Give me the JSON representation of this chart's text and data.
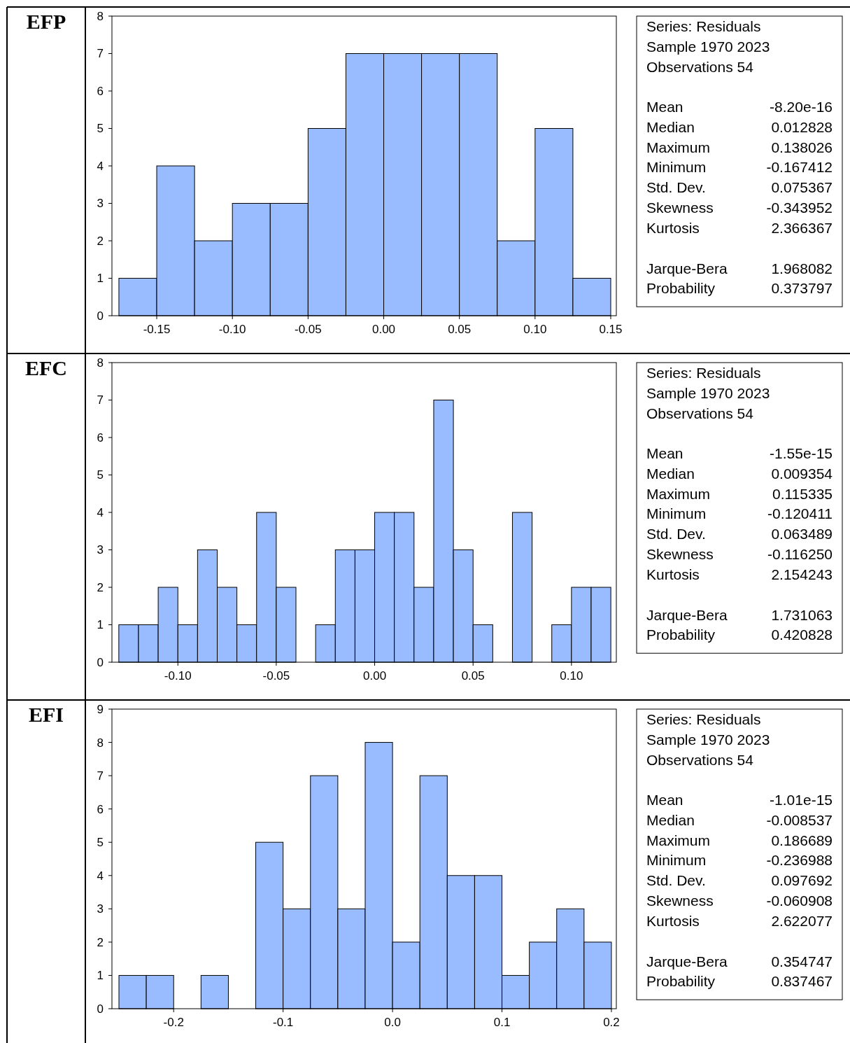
{
  "chart_data": [
    {
      "type": "histogram",
      "title": "EFP",
      "color": "#99bbff",
      "bins": [
        -0.175,
        -0.15,
        -0.125,
        -0.1,
        -0.075,
        -0.05,
        -0.025,
        0,
        0.025,
        0.05,
        0.075,
        0.1,
        0.125,
        0.15
      ],
      "values": [
        1,
        4,
        2,
        3,
        3,
        5,
        7,
        7,
        7,
        7,
        2,
        5,
        1
      ],
      "xlim": [
        -0.1796,
        0.1537
      ],
      "xticks": [
        {
          "value": -0.15,
          "label": "-0.15"
        },
        {
          "value": -0.1,
          "label": "-0.10"
        },
        {
          "value": -0.05,
          "label": "-0.05"
        },
        {
          "value": 0,
          "label": "0.00"
        },
        {
          "value": 0.05,
          "label": "0.05"
        },
        {
          "value": 0.1,
          "label": "0.10"
        },
        {
          "value": 0.15,
          "label": "0.15"
        }
      ],
      "ylim": [
        0,
        8
      ],
      "yticks": [
        0,
        1,
        2,
        3,
        4,
        5,
        6,
        7,
        8
      ],
      "annotations": [
        "Series: Residuals",
        "Sample 1970 2023",
        "Observations 54",
        "Mean",
        "-8.20e-16",
        "Median",
        "0.012828",
        "Maximum",
        "0.138026",
        "Minimum",
        "-0.167412",
        "Std. Dev.",
        "0.075367",
        "Skewness",
        "-0.343952",
        "Kurtosis",
        "2.366367",
        "Jarque-Bera",
        "1.968082",
        "Probability",
        "0.373797"
      ]
    },
    {
      "type": "histogram",
      "title": "EFC",
      "color": "#99bbff",
      "bins": [
        -0.13,
        -0.12,
        -0.11,
        -0.1,
        -0.09,
        -0.08,
        -0.07,
        -0.06,
        -0.05,
        -0.04,
        -0.03,
        -0.02,
        -0.01,
        0,
        0.01,
        0.02,
        0.03,
        0.04,
        0.05,
        0.06,
        0.07,
        0.08,
        0.09,
        0.1,
        0.11,
        0.12
      ],
      "values": [
        1,
        1,
        2,
        1,
        3,
        2,
        1,
        4,
        2,
        0,
        1,
        3,
        3,
        4,
        4,
        2,
        7,
        3,
        1,
        0,
        4,
        0,
        1,
        2,
        2
      ],
      "xlim": [
        -0.1335,
        0.1228
      ],
      "xticks": [
        {
          "value": -0.1,
          "label": "-0.10"
        },
        {
          "value": -0.05,
          "label": "-0.05"
        },
        {
          "value": 0,
          "label": "0.00"
        },
        {
          "value": 0.05,
          "label": "0.05"
        },
        {
          "value": 0.1,
          "label": "0.10"
        }
      ],
      "ylim": [
        0,
        8
      ],
      "yticks": [
        0,
        1,
        2,
        3,
        4,
        5,
        6,
        7,
        8
      ],
      "annotations": [
        "Series: Residuals",
        "Sample 1970 2023",
        "Observations 54",
        "Mean",
        "-1.55e-15",
        "Median",
        "0.009354",
        "Maximum",
        "0.115335",
        "Minimum",
        "-0.120411",
        "Std. Dev.",
        "0.063489",
        "Skewness",
        "-0.116250",
        "Kurtosis",
        "2.154243",
        "Jarque-Bera",
        "1.731063",
        "Probability",
        "0.420828"
      ]
    },
    {
      "type": "histogram",
      "title": "EFI",
      "color": "#99bbff",
      "bins": [
        -0.25,
        -0.225,
        -0.2,
        -0.175,
        -0.15,
        -0.125,
        -0.1,
        -0.075,
        -0.05,
        -0.025,
        0,
        0.025,
        0.05,
        0.075,
        0.1,
        0.125,
        0.15,
        0.175,
        0.2
      ],
      "values": [
        1,
        1,
        0,
        1,
        0,
        5,
        3,
        7,
        3,
        8,
        2,
        7,
        4,
        4,
        1,
        2,
        3,
        2
      ],
      "xlim": [
        -0.2564,
        0.2045
      ],
      "xticks": [
        {
          "value": -0.2,
          "label": "-0.2"
        },
        {
          "value": -0.1,
          "label": "-0.1"
        },
        {
          "value": 0,
          "label": "0.0"
        },
        {
          "value": 0.1,
          "label": "0.1"
        },
        {
          "value": 0.2,
          "label": "0.2"
        }
      ],
      "ylim": [
        0,
        9
      ],
      "yticks": [
        0,
        1,
        2,
        3,
        4,
        5,
        6,
        7,
        8,
        9
      ],
      "annotations": [
        "Series: Residuals",
        "Sample 1970 2023",
        "Observations 54",
        "Mean",
        "-1.01e-15",
        "Median",
        "-0.008537",
        "Maximum",
        "0.186689",
        "Minimum",
        "-0.236988",
        "Std. Dev.",
        "0.097692",
        "Skewness",
        "-0.060908",
        "Kurtosis",
        "2.622077",
        "Jarque-Bera",
        "0.354747",
        "Probability",
        "0.837467"
      ]
    }
  ]
}
